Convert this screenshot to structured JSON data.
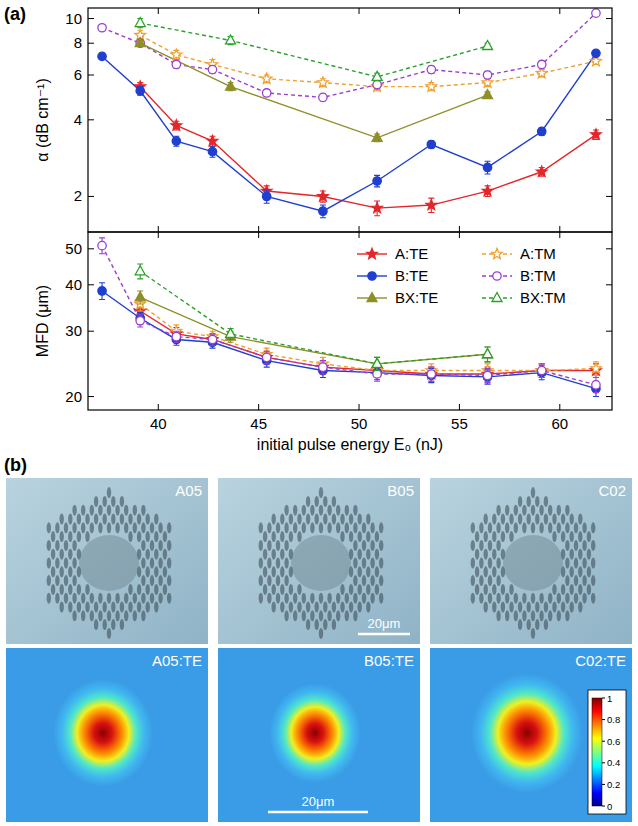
{
  "chart_data": [
    {
      "type": "line",
      "log": "y",
      "grid": false,
      "tick_labels": "y",
      "ylabel": "α (dB cm⁻¹)",
      "xlim": [
        36.5,
        62.6
      ],
      "xticks": [
        40,
        45,
        50,
        55,
        60
      ],
      "ylim": [
        1.45,
        11
      ],
      "yticks": [
        2,
        4,
        6,
        8,
        10
      ],
      "series": [
        {
          "color": "#e4262b",
          "marker": "star",
          "line_style": "solid",
          "x": [
            39.1,
            40.9,
            42.7,
            45.4,
            48.2,
            50.9,
            53.6,
            56.4,
            59.1,
            61.8
          ],
          "values": [
            5.4,
            3.8,
            3.3,
            2.1,
            2.0,
            1.8,
            1.85,
            2.1,
            2.5,
            3.5
          ],
          "errors": [
            0.2,
            0.15,
            0.15,
            0.1,
            0.1,
            0.12,
            0.12,
            0.1,
            0.1,
            0.15
          ]
        },
        {
          "color": "#f0a030",
          "marker": "open-star",
          "line_style": "dashed",
          "x": [
            39.1,
            40.9,
            42.7,
            45.4,
            48.2,
            50.9,
            53.6,
            56.4,
            59.1,
            61.8
          ],
          "values": [
            8.6,
            7.2,
            6.6,
            5.8,
            5.6,
            5.4,
            5.4,
            5.6,
            6.1,
            6.8
          ],
          "errors": [
            0.4,
            0.3,
            0.3,
            0.2,
            0.2,
            0.2,
            0.2,
            0.2,
            0.2,
            0.2
          ]
        },
        {
          "color": "#1f3fd0",
          "marker": "circle",
          "line_style": "solid",
          "x": [
            37.2,
            39.1,
            40.9,
            42.7,
            45.4,
            48.2,
            50.9,
            53.6,
            56.4,
            59.1,
            61.8
          ],
          "values": [
            7.1,
            5.2,
            3.3,
            3.0,
            2.0,
            1.75,
            2.3,
            3.2,
            2.6,
            3.6,
            7.3
          ],
          "errors": [
            0.2,
            0.2,
            0.15,
            0.15,
            0.12,
            0.1,
            0.12,
            0.1,
            0.15,
            0.12,
            0.2
          ]
        },
        {
          "color": "#9b3fd0",
          "marker": "open-circle",
          "line_style": "dashed",
          "x": [
            37.2,
            39.1,
            40.9,
            42.7,
            45.4,
            48.2,
            50.9,
            53.6,
            56.4,
            59.1,
            61.8
          ],
          "values": [
            9.2,
            8.0,
            6.6,
            6.3,
            5.1,
            4.9,
            5.5,
            6.3,
            6.0,
            6.6,
            10.5
          ],
          "errors": [
            0.2,
            0.2,
            0.2,
            0.2,
            0.15,
            0.15,
            0.2,
            0.2,
            0.2,
            0.2,
            0.2
          ]
        },
        {
          "color": "#8f8f2a",
          "marker": "triangle",
          "line_style": "solid",
          "x": [
            39.1,
            43.6,
            50.9,
            56.4
          ],
          "values": [
            8.0,
            5.4,
            3.4,
            5.0
          ],
          "errors": [
            0.2,
            0.2,
            0.12,
            0.15
          ]
        },
        {
          "color": "#2aa02a",
          "marker": "open-triangle",
          "line_style": "dashed",
          "x": [
            39.1,
            43.6,
            50.9,
            56.4
          ],
          "values": [
            9.6,
            8.2,
            5.9,
            7.8
          ],
          "errors": [
            0.4,
            0.3,
            0.2,
            0.2
          ]
        }
      ]
    },
    {
      "type": "line",
      "log": "y",
      "grid": false,
      "tick_labels": true,
      "legend": "upper right",
      "xlabel": "initial pulse energy E₀ (nJ)",
      "ylabel": "MFD (μm)",
      "xlim": [
        36.5,
        62.6
      ],
      "xticks": [
        40,
        45,
        50,
        55,
        60
      ],
      "ylim": [
        18.4,
        55.5
      ],
      "yticks": [
        20,
        30,
        40,
        50
      ],
      "series": [
        {
          "name": "A:TE",
          "color": "#e4262b",
          "marker": "star",
          "line_style": "solid",
          "x": [
            39.1,
            40.9,
            42.7,
            45.4,
            48.2,
            50.9,
            53.6,
            56.4,
            59.1,
            61.8
          ],
          "values": [
            34,
            29.5,
            28.5,
            25.5,
            24,
            23.5,
            23,
            23,
            23.5,
            23.5
          ],
          "errors": [
            1.5,
            1.2,
            1,
            1,
            1,
            1,
            1,
            1,
            1,
            1
          ]
        },
        {
          "name": "A:TM",
          "color": "#f0a030",
          "marker": "open-star",
          "line_style": "dashed",
          "x": [
            39.1,
            40.9,
            42.7,
            45.4,
            48.2,
            50.9,
            53.6,
            56.4,
            59.1,
            61.8
          ],
          "values": [
            35.5,
            30,
            29,
            26,
            24.5,
            23.5,
            23.5,
            23.5,
            23.5,
            23.8
          ],
          "errors": [
            1.5,
            1.2,
            1,
            1,
            1,
            1,
            1,
            1,
            1,
            1
          ]
        },
        {
          "name": "B:TE",
          "color": "#1f3fd0",
          "marker": "circle",
          "line_style": "solid",
          "x": [
            37.2,
            39.1,
            40.9,
            42.7,
            45.4,
            48.2,
            50.9,
            53.6,
            56.4,
            59.1,
            61.8
          ],
          "values": [
            38.5,
            32.5,
            28.5,
            28,
            25,
            23.5,
            23.2,
            22.8,
            22.6,
            23.2,
            21
          ],
          "errors": [
            2,
            1.2,
            1,
            1,
            1,
            1,
            1,
            1,
            1,
            1,
            1
          ]
        },
        {
          "name": "B:TM",
          "color": "#9b3fd0",
          "marker": "open-circle",
          "line_style": "dashed",
          "x": [
            37.2,
            39.1,
            40.9,
            42.7,
            45.4,
            48.2,
            50.9,
            53.6,
            56.4,
            59.1,
            61.8
          ],
          "values": [
            51,
            32,
            29,
            28.5,
            25.5,
            24,
            23,
            23,
            22.8,
            23.5,
            21.5
          ],
          "errors": [
            2.5,
            1.2,
            1,
            1,
            1,
            1,
            1,
            1,
            1,
            1,
            1
          ]
        },
        {
          "name": "BX:TE",
          "color": "#8f8f2a",
          "marker": "triangle",
          "line_style": "solid",
          "x": [
            39.1,
            43.6,
            50.9,
            56.4
          ],
          "values": [
            37,
            29,
            24.5,
            26
          ],
          "errors": [
            1.5,
            1,
            1,
            1.2
          ]
        },
        {
          "name": "BX:TM",
          "color": "#2aa02a",
          "marker": "open-triangle",
          "line_style": "dashed",
          "x": [
            39.1,
            43.6,
            50.9,
            56.4
          ],
          "values": [
            43.5,
            29.5,
            24.5,
            26
          ],
          "errors": [
            2,
            1,
            1,
            1.2
          ]
        }
      ]
    }
  ],
  "figure": {
    "panel_labels": [
      "(a)",
      "(b)"
    ],
    "micrographs": [
      {
        "label": "A05"
      },
      {
        "label": "B05",
        "scale_bar": "20μm"
      },
      {
        "label": "C02"
      }
    ],
    "modes": [
      {
        "label": "A05:TE"
      },
      {
        "label": "B05:TE",
        "scale_bar": "20μm"
      },
      {
        "label": "C02:TE"
      }
    ],
    "colorbar": {
      "range": [
        0,
        1
      ],
      "ticks": [
        0,
        0.2,
        0.4,
        0.6,
        0.8,
        1
      ]
    }
  }
}
